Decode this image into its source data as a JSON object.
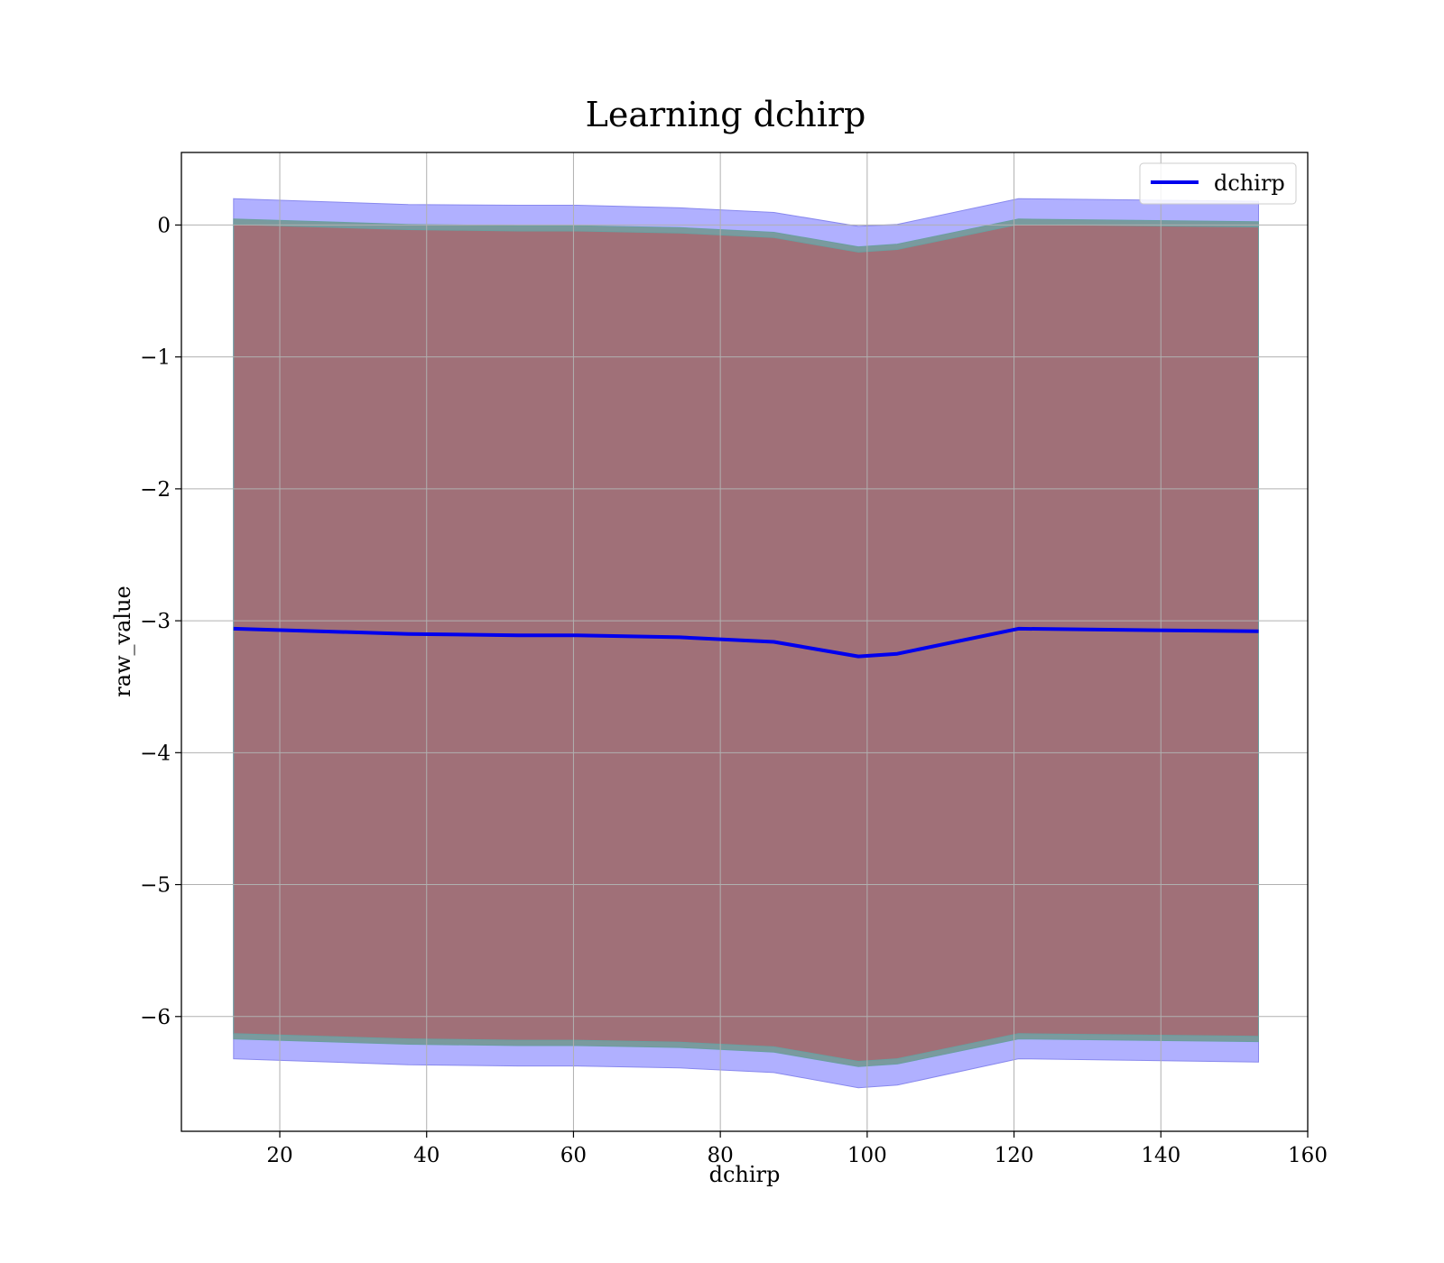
{
  "chart_data": {
    "type": "line",
    "title": "Learning dchirp",
    "xlabel": "dchirp",
    "ylabel": "raw_value",
    "xlim": [
      6.6,
      160
    ],
    "ylim": [
      -6.87,
      0.55
    ],
    "grid": true,
    "legend": {
      "placement": "top-right",
      "entries": [
        "dchirp"
      ]
    },
    "x_ticks": [
      20,
      40,
      60,
      80,
      100,
      120,
      140,
      160
    ],
    "x_tick_labels": [
      "20",
      "40",
      "60",
      "80",
      "100",
      "120",
      "140",
      "160"
    ],
    "y_ticks": [
      0,
      -1,
      -2,
      -3,
      -4,
      -5,
      -6
    ],
    "y_tick_labels": [
      "0",
      "−1",
      "−2",
      "−3",
      "−4",
      "−5",
      "−6"
    ],
    "x": [
      13.7,
      37.5,
      52.5,
      60.5,
      74.5,
      87.3,
      98.8,
      104.1,
      120.6,
      153.3
    ],
    "series": [
      {
        "name": "dchirp",
        "values": [
          -3.06,
          -3.1,
          -3.11,
          -3.11,
          -3.125,
          -3.16,
          -3.27,
          -3.25,
          -3.06,
          -3.08
        ]
      }
    ],
    "bands": [
      {
        "label": "outer",
        "color": "#b0b0ff",
        "upper": [
          0.2,
          0.155,
          0.15,
          0.15,
          0.13,
          0.095,
          -0.01,
          0.005,
          0.2,
          0.18
        ],
        "lower": [
          -6.32,
          -6.365,
          -6.375,
          -6.375,
          -6.39,
          -6.425,
          -6.54,
          -6.52,
          -6.32,
          -6.345
        ]
      },
      {
        "label": "middle",
        "color": "#7a9a9e",
        "upper": [
          0.045,
          0.005,
          -0.005,
          -0.005,
          -0.02,
          -0.055,
          -0.165,
          -0.145,
          0.045,
          0.025
        ],
        "lower": [
          -6.17,
          -6.21,
          -6.22,
          -6.22,
          -6.235,
          -6.27,
          -6.38,
          -6.36,
          -6.17,
          -6.19
        ]
      },
      {
        "label": "inner",
        "color": "#a07078",
        "upper": [
          0.005,
          -0.035,
          -0.045,
          -0.045,
          -0.06,
          -0.095,
          -0.205,
          -0.185,
          0.005,
          -0.015
        ],
        "lower": [
          -6.13,
          -6.17,
          -6.18,
          -6.18,
          -6.195,
          -6.23,
          -6.34,
          -6.32,
          -6.13,
          -6.15
        ]
      }
    ],
    "colors": {
      "line": "#0000ee",
      "outer_edge": "#8888ee",
      "inner_edge": "#6a9fa0"
    }
  }
}
